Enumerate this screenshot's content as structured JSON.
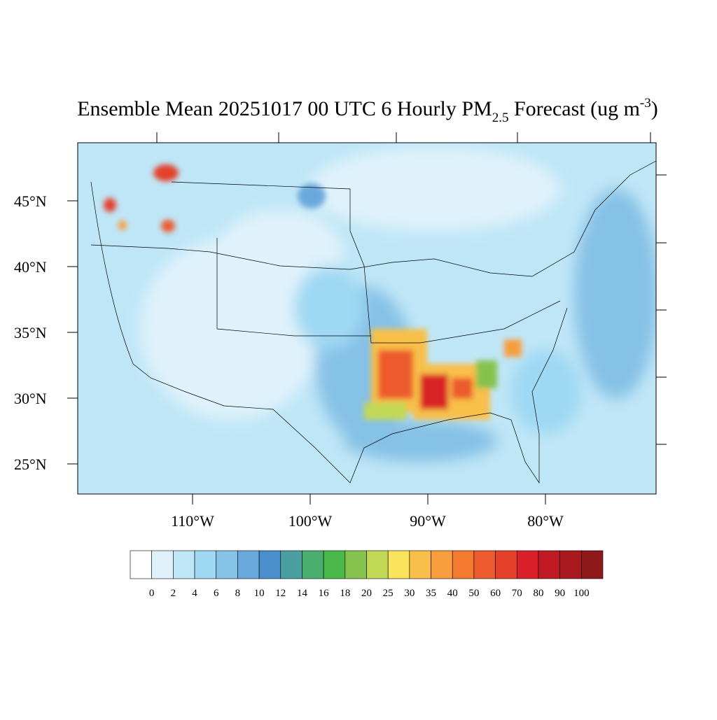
{
  "map": {
    "title": {
      "main": "Ensemble Mean 20251017 00 UTC 6 Hourly PM",
      "sub": "2.5",
      "mid": " Forecast (ug m",
      "sup": "-3",
      "end": ")"
    },
    "lat_ticks": [
      {
        "value": 45,
        "label": "45°N"
      },
      {
        "value": 40,
        "label": "40°N"
      },
      {
        "value": 35,
        "label": "35°N"
      },
      {
        "value": 30,
        "label": "30°N"
      },
      {
        "value": 25,
        "label": "25°N"
      }
    ],
    "lon_ticks": [
      {
        "value": 110,
        "label": "110°W"
      },
      {
        "value": 100,
        "label": "100°W"
      },
      {
        "value": 90,
        "label": "90°W"
      },
      {
        "value": 80,
        "label": "80°W"
      }
    ],
    "colorbar": {
      "levels": [
        0,
        2,
        4,
        6,
        8,
        10,
        12,
        14,
        16,
        18,
        20,
        25,
        30,
        35,
        40,
        50,
        60,
        70,
        80,
        90,
        100
      ],
      "colors": [
        "#ffffff",
        "#dff2fb",
        "#bfe6f7",
        "#9fd8f3",
        "#86c1e6",
        "#6aa9dc",
        "#4a8fcc",
        "#4a9fa0",
        "#4aae6e",
        "#4ab84a",
        "#85c24e",
        "#c2d857",
        "#f8e35a",
        "#f8c04a",
        "#f89d3e",
        "#f47a30",
        "#ec5a2e",
        "#e4402a",
        "#d92028",
        "#c01b25",
        "#a81a20",
        "#8e181a"
      ]
    }
  }
}
